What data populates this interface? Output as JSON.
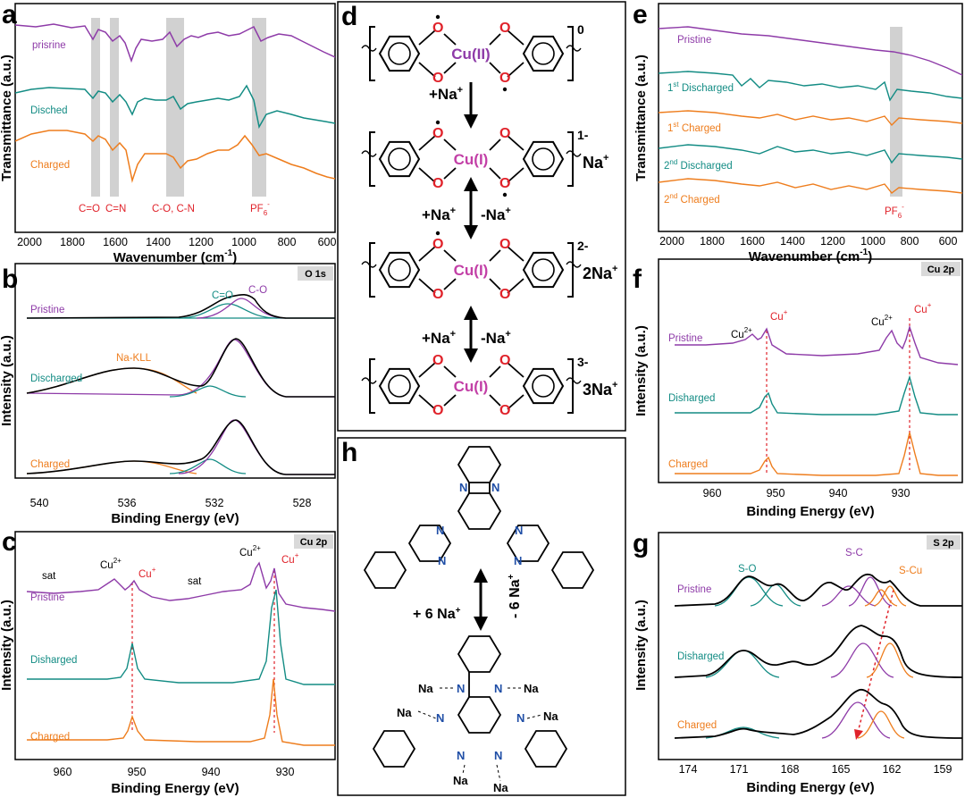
{
  "colors": {
    "purple": "#8E3BA8",
    "teal": "#138C84",
    "orange": "#EE7D1D",
    "red": "#E0222A",
    "green": "#2E9E55",
    "gray": "#C9C9C9",
    "navy": "#1F4EA6",
    "pink": "#C23FA6"
  },
  "panels": {
    "a": "a",
    "b": "b",
    "c": "c",
    "d": "d",
    "e": "e",
    "f": "f",
    "g": "g",
    "h": "h"
  },
  "chart_data": [
    {
      "id": "a",
      "type": "line",
      "xlabel": "Wavenumber (cm",
      "xlabel_sup": "-1",
      "xlabel_end": ")",
      "ylabel": "Transmittance (a.u.)",
      "x_ticks": [
        "2000",
        "1800",
        "1600",
        "1400",
        "1200",
        "1000",
        "800",
        "600"
      ],
      "xlim": [
        2000,
        500
      ],
      "series": [
        {
          "name": "prisrine",
          "color": "purple"
        },
        {
          "name": "Disched",
          "color": "teal"
        },
        {
          "name": "Charged",
          "color": "orange"
        }
      ],
      "bands": [
        {
          "label": "C=O",
          "x": 1660
        },
        {
          "label": "C=N",
          "x": 1570
        },
        {
          "label": "C-O, C-N",
          "x": 1260
        },
        {
          "label": "PF",
          "label_sub": "6",
          "label_sup": "-",
          "x": 840
        }
      ]
    },
    {
      "id": "b",
      "type": "line",
      "tag": "O 1s",
      "xlabel": "Binding Energy (eV)",
      "ylabel": "Intensity (a.u.)",
      "x_ticks": [
        "540",
        "536",
        "532",
        "528"
      ],
      "xlim": [
        541,
        527
      ],
      "series": [
        {
          "name": "Pristine",
          "color": "purple"
        },
        {
          "name": "Discharged",
          "color": "teal"
        },
        {
          "name": "Charged",
          "color": "orange"
        }
      ],
      "annotations": [
        "C=O",
        "C-O",
        "Na-KLL"
      ]
    },
    {
      "id": "c",
      "type": "line",
      "tag": "Cu 2p",
      "xlabel": "Binding Energy (eV)",
      "ylabel": "Intensity (a.u.)",
      "x_ticks": [
        "960",
        "950",
        "940",
        "930"
      ],
      "xlim": [
        966,
        925
      ],
      "series": [
        {
          "name": "Pristine",
          "color": "purple"
        },
        {
          "name": "Disharged",
          "color": "teal"
        },
        {
          "name": "Charged",
          "color": "orange"
        }
      ],
      "annotations": [
        "sat",
        "sat",
        "Cu",
        "Cu",
        "Cu",
        "Cu"
      ],
      "annotation_sups": [
        "2+",
        "+",
        "2+",
        "+"
      ]
    },
    {
      "id": "e",
      "type": "line",
      "xlabel": "Wavenumber (cm",
      "xlabel_sup": "-1",
      "xlabel_end": ")",
      "ylabel": "Transmittance (a.u.)",
      "x_ticks": [
        "2000",
        "1800",
        "1600",
        "1400",
        "1200",
        "1000",
        "800",
        "600"
      ],
      "xlim": [
        2000,
        500
      ],
      "series": [
        {
          "name": "Pristine",
          "color": "purple"
        },
        {
          "name": "1",
          "sup": "st",
          "rest": " Discharged",
          "color": "teal"
        },
        {
          "name": "1",
          "sup": "st",
          "rest": " Charged",
          "color": "orange"
        },
        {
          "name": "2",
          "sup": "nd",
          "rest": " Discharged",
          "color": "teal"
        },
        {
          "name": "2",
          "sup": "nd",
          "rest": " Charged",
          "color": "orange"
        }
      ],
      "bands": [
        {
          "label": "PF",
          "label_sub": "6",
          "label_sup": "-",
          "x": 830
        }
      ]
    },
    {
      "id": "f",
      "type": "line",
      "tag": "Cu 2p",
      "xlabel": "Binding Energy (eV)",
      "ylabel": "Intensity (a.u.)",
      "x_ticks": [
        "960",
        "950",
        "940",
        "930"
      ],
      "xlim": [
        966,
        925
      ],
      "series": [
        {
          "name": "Pristine",
          "color": "purple"
        },
        {
          "name": "Disharged",
          "color": "teal"
        },
        {
          "name": "Charged",
          "color": "orange"
        }
      ],
      "annotations": [
        "Cu",
        "Cu",
        "Cu",
        "Cu"
      ],
      "annotation_sups": [
        "2+",
        "+",
        "2+",
        "+"
      ]
    },
    {
      "id": "g",
      "type": "line",
      "tag": "S 2p",
      "xlabel": "Binding Energy (eV)",
      "ylabel": "Intensity (a.u.)",
      "x_ticks": [
        "174",
        "171",
        "168",
        "165",
        "162",
        "159"
      ],
      "xlim": [
        176,
        157
      ],
      "series": [
        {
          "name": "Pristine",
          "color": "purple"
        },
        {
          "name": "Disharged",
          "color": "teal"
        },
        {
          "name": "Charged",
          "color": "orange"
        }
      ],
      "annotations": [
        "S-O",
        "S-C",
        "S-Cu"
      ]
    }
  ],
  "scheme_d": {
    "states": [
      "0",
      "1-",
      "2-",
      "3-"
    ],
    "ions": [
      "",
      "Na",
      "2Na",
      "3Na"
    ],
    "metal": [
      "Cu(II)",
      "Cu(I)",
      "Cu(I)",
      "Cu(I)"
    ],
    "steps": [
      "+Na",
      "+Na",
      "-Na",
      "+Na",
      "-Na"
    ]
  },
  "scheme_h": {
    "forward": "+ 6 Na",
    "backward": "- 6 Na",
    "na": "Na"
  }
}
